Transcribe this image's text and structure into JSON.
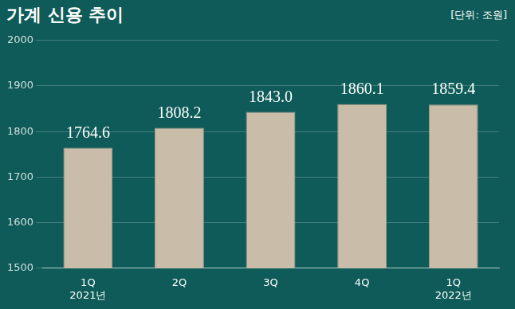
{
  "chart_data": {
    "type": "bar",
    "title": "가계 신용 추이",
    "subtitle": "[단위: 조원]",
    "categories": [
      [
        "1Q",
        "2021년"
      ],
      "2Q",
      "3Q",
      "4Q",
      [
        "1Q",
        "2022년"
      ]
    ],
    "values": [
      1764.6,
      1808.2,
      1843.0,
      1860.1,
      1859.4
    ],
    "value_labels": [
      "1764.6",
      "1808.2",
      "1843.0",
      "1860.1",
      "1859.4"
    ],
    "color": "#c9bca9",
    "ylim": [
      1500,
      2000
    ],
    "yticks": [
      1500,
      1600,
      1700,
      1800,
      1900,
      2000
    ],
    "grid": true,
    "data_labels": true
  }
}
